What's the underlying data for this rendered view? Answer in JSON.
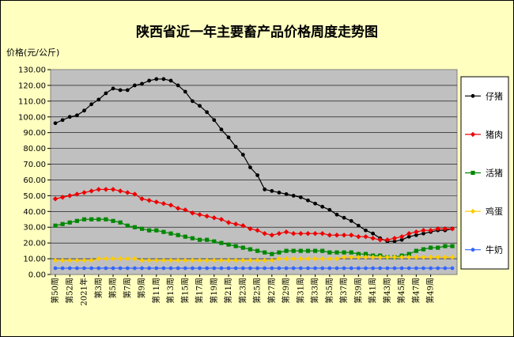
{
  "chart_data": {
    "type": "line",
    "title": "陕西省近一年主要畜产品价格周度走势图",
    "ylabel": "价格(元/公斤)",
    "ylim": [
      0,
      130
    ],
    "ytick_step": 10,
    "yticks": [
      "0.00",
      "10.00",
      "20.00",
      "30.00",
      "40.00",
      "50.00",
      "60.00",
      "70.00",
      "80.00",
      "90.00",
      "100.00",
      "110.00",
      "120.00",
      "130.00"
    ],
    "grid": true,
    "legend": "right",
    "x_tick_labels": [
      "第50周",
      "第52周",
      "2021年",
      "第3周",
      "第5周",
      "第7周",
      "第9周",
      "第11周",
      "第13周",
      "第15周",
      "第17周",
      "第19周",
      "第21周",
      "第23周",
      "第25周",
      "第27周",
      "第29周",
      "第31周",
      "第33周",
      "第35周",
      "第37周",
      "第39周",
      "第41周",
      "第43周",
      "第45周",
      "第47周",
      "第49周"
    ],
    "series": [
      {
        "name": "仔猪",
        "color": "#000000",
        "marker": "circle",
        "values": [
          96,
          98,
          100,
          101,
          104,
          108,
          111,
          115,
          118,
          117,
          117,
          120,
          121,
          123,
          124,
          124,
          123,
          120,
          116,
          110,
          107,
          103,
          98,
          92,
          87,
          81,
          76,
          68,
          63,
          54,
          53,
          52,
          51,
          50,
          49,
          47,
          45,
          43,
          41,
          38,
          36,
          34,
          31,
          28,
          26,
          23,
          21,
          21,
          22,
          24,
          25,
          26,
          27,
          28,
          28,
          29
        ]
      },
      {
        "name": "猪肉",
        "color": "#ee0000",
        "marker": "diamond",
        "values": [
          48,
          49,
          50,
          51,
          52,
          53,
          54,
          54,
          54,
          53,
          52,
          51,
          48,
          47,
          46,
          45,
          44,
          42,
          41,
          39,
          38,
          37,
          36,
          35,
          33,
          32,
          31,
          29,
          28,
          26,
          25,
          26,
          27,
          26,
          26,
          26,
          26,
          26,
          25,
          25,
          25,
          25,
          24,
          24,
          23,
          22,
          22,
          23,
          24,
          26,
          27,
          28,
          28,
          29,
          29,
          29
        ]
      },
      {
        "name": "活猪",
        "color": "#008800",
        "marker": "square",
        "values": [
          31,
          32,
          33,
          34,
          35,
          35,
          35,
          35,
          34,
          33,
          31,
          30,
          29,
          28,
          28,
          27,
          26,
          25,
          24,
          23,
          22,
          22,
          21,
          20,
          19,
          18,
          17,
          16,
          15,
          14,
          13,
          14,
          15,
          15,
          15,
          15,
          15,
          15,
          14,
          14,
          14,
          14,
          13,
          13,
          12,
          12,
          11,
          11,
          12,
          13,
          15,
          16,
          17,
          17,
          18,
          18
        ]
      },
      {
        "name": "鸡蛋",
        "color": "#ffcc00",
        "marker": "diamond",
        "values": [
          9,
          9,
          9,
          9,
          9,
          9,
          10,
          10,
          10,
          10,
          10,
          10,
          9,
          9,
          9,
          9,
          9,
          9,
          9,
          9,
          9,
          9,
          9,
          9,
          9,
          9,
          9,
          9,
          9,
          9,
          9,
          10,
          10,
          10,
          10,
          10,
          10,
          10,
          10,
          10,
          11,
          11,
          11,
          11,
          11,
          11,
          11,
          11,
          11,
          11,
          11,
          11,
          11,
          11,
          11,
          11
        ]
      },
      {
        "name": "牛奶",
        "color": "#3366ff",
        "marker": "circle",
        "values": [
          4,
          4,
          4,
          4,
          4,
          4,
          4,
          4,
          4,
          4,
          4,
          4,
          4,
          4,
          4,
          4,
          4,
          4,
          4,
          4,
          4,
          4,
          4,
          4,
          4,
          4,
          4,
          4,
          4,
          4,
          4,
          4,
          4,
          4,
          4,
          4,
          4,
          4,
          4,
          4,
          4,
          4,
          4,
          4,
          4,
          4,
          4,
          4,
          4,
          4,
          4,
          4,
          4,
          4,
          4,
          4
        ]
      }
    ]
  }
}
